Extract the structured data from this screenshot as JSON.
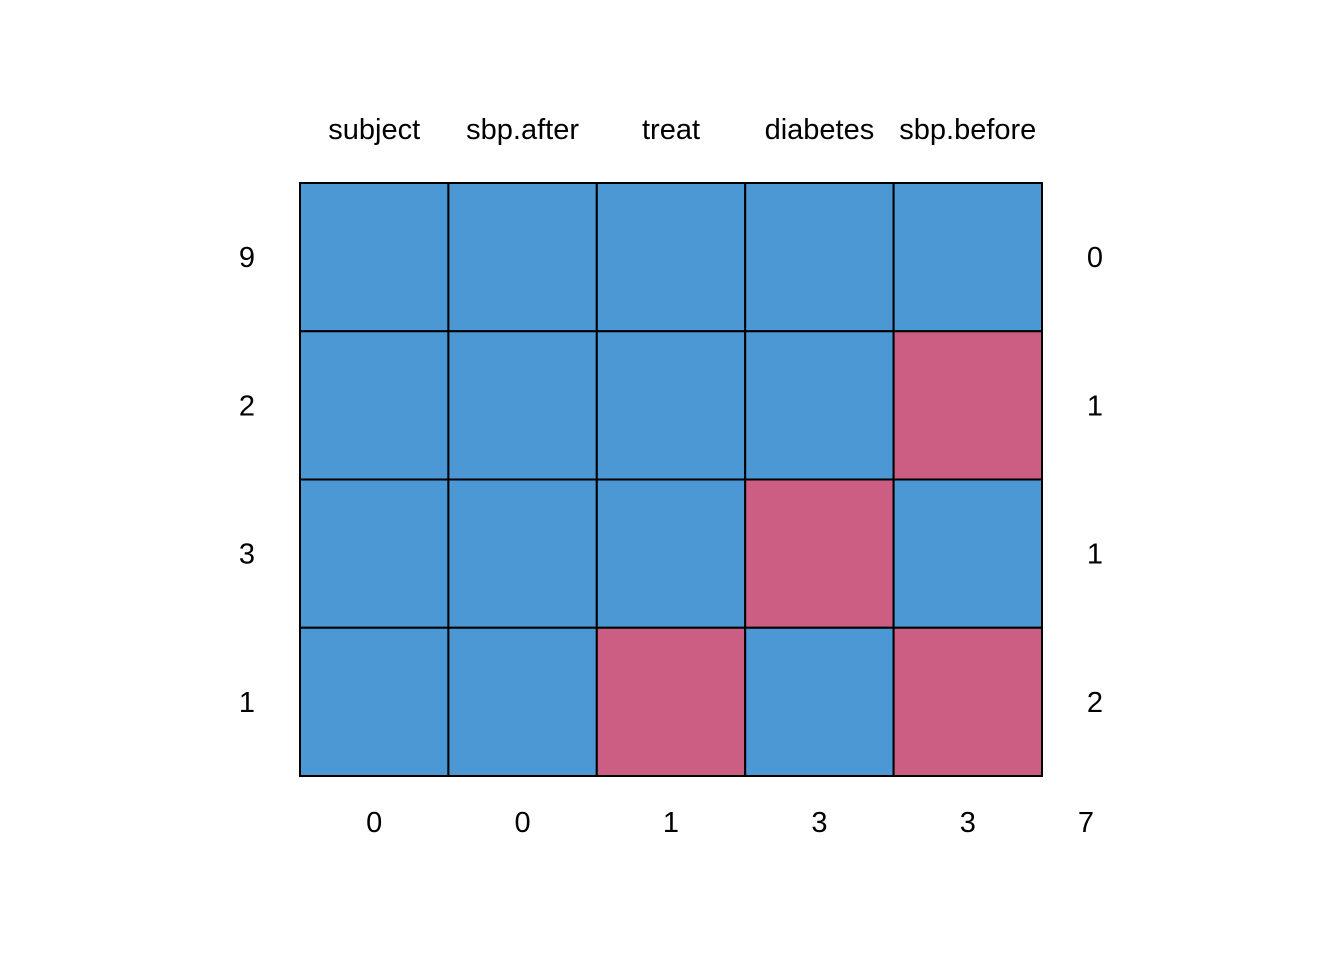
{
  "chart_data": {
    "type": "heatmap",
    "title": "",
    "columns": [
      "subject",
      "sbp.after",
      "treat",
      "diabetes",
      "sbp.before"
    ],
    "rows": [
      {
        "count": "9",
        "missing_vars": "0",
        "pattern": [
          1,
          1,
          1,
          1,
          1
        ]
      },
      {
        "count": "2",
        "missing_vars": "1",
        "pattern": [
          1,
          1,
          1,
          1,
          0
        ]
      },
      {
        "count": "3",
        "missing_vars": "1",
        "pattern": [
          1,
          1,
          1,
          0,
          1
        ]
      },
      {
        "count": "1",
        "missing_vars": "2",
        "pattern": [
          1,
          1,
          0,
          1,
          0
        ]
      }
    ],
    "column_totals": [
      "0",
      "0",
      "1",
      "3",
      "3"
    ],
    "grand_total": "7",
    "colors": {
      "observed": "#4c98d4",
      "missing": "#cc5e83"
    }
  }
}
